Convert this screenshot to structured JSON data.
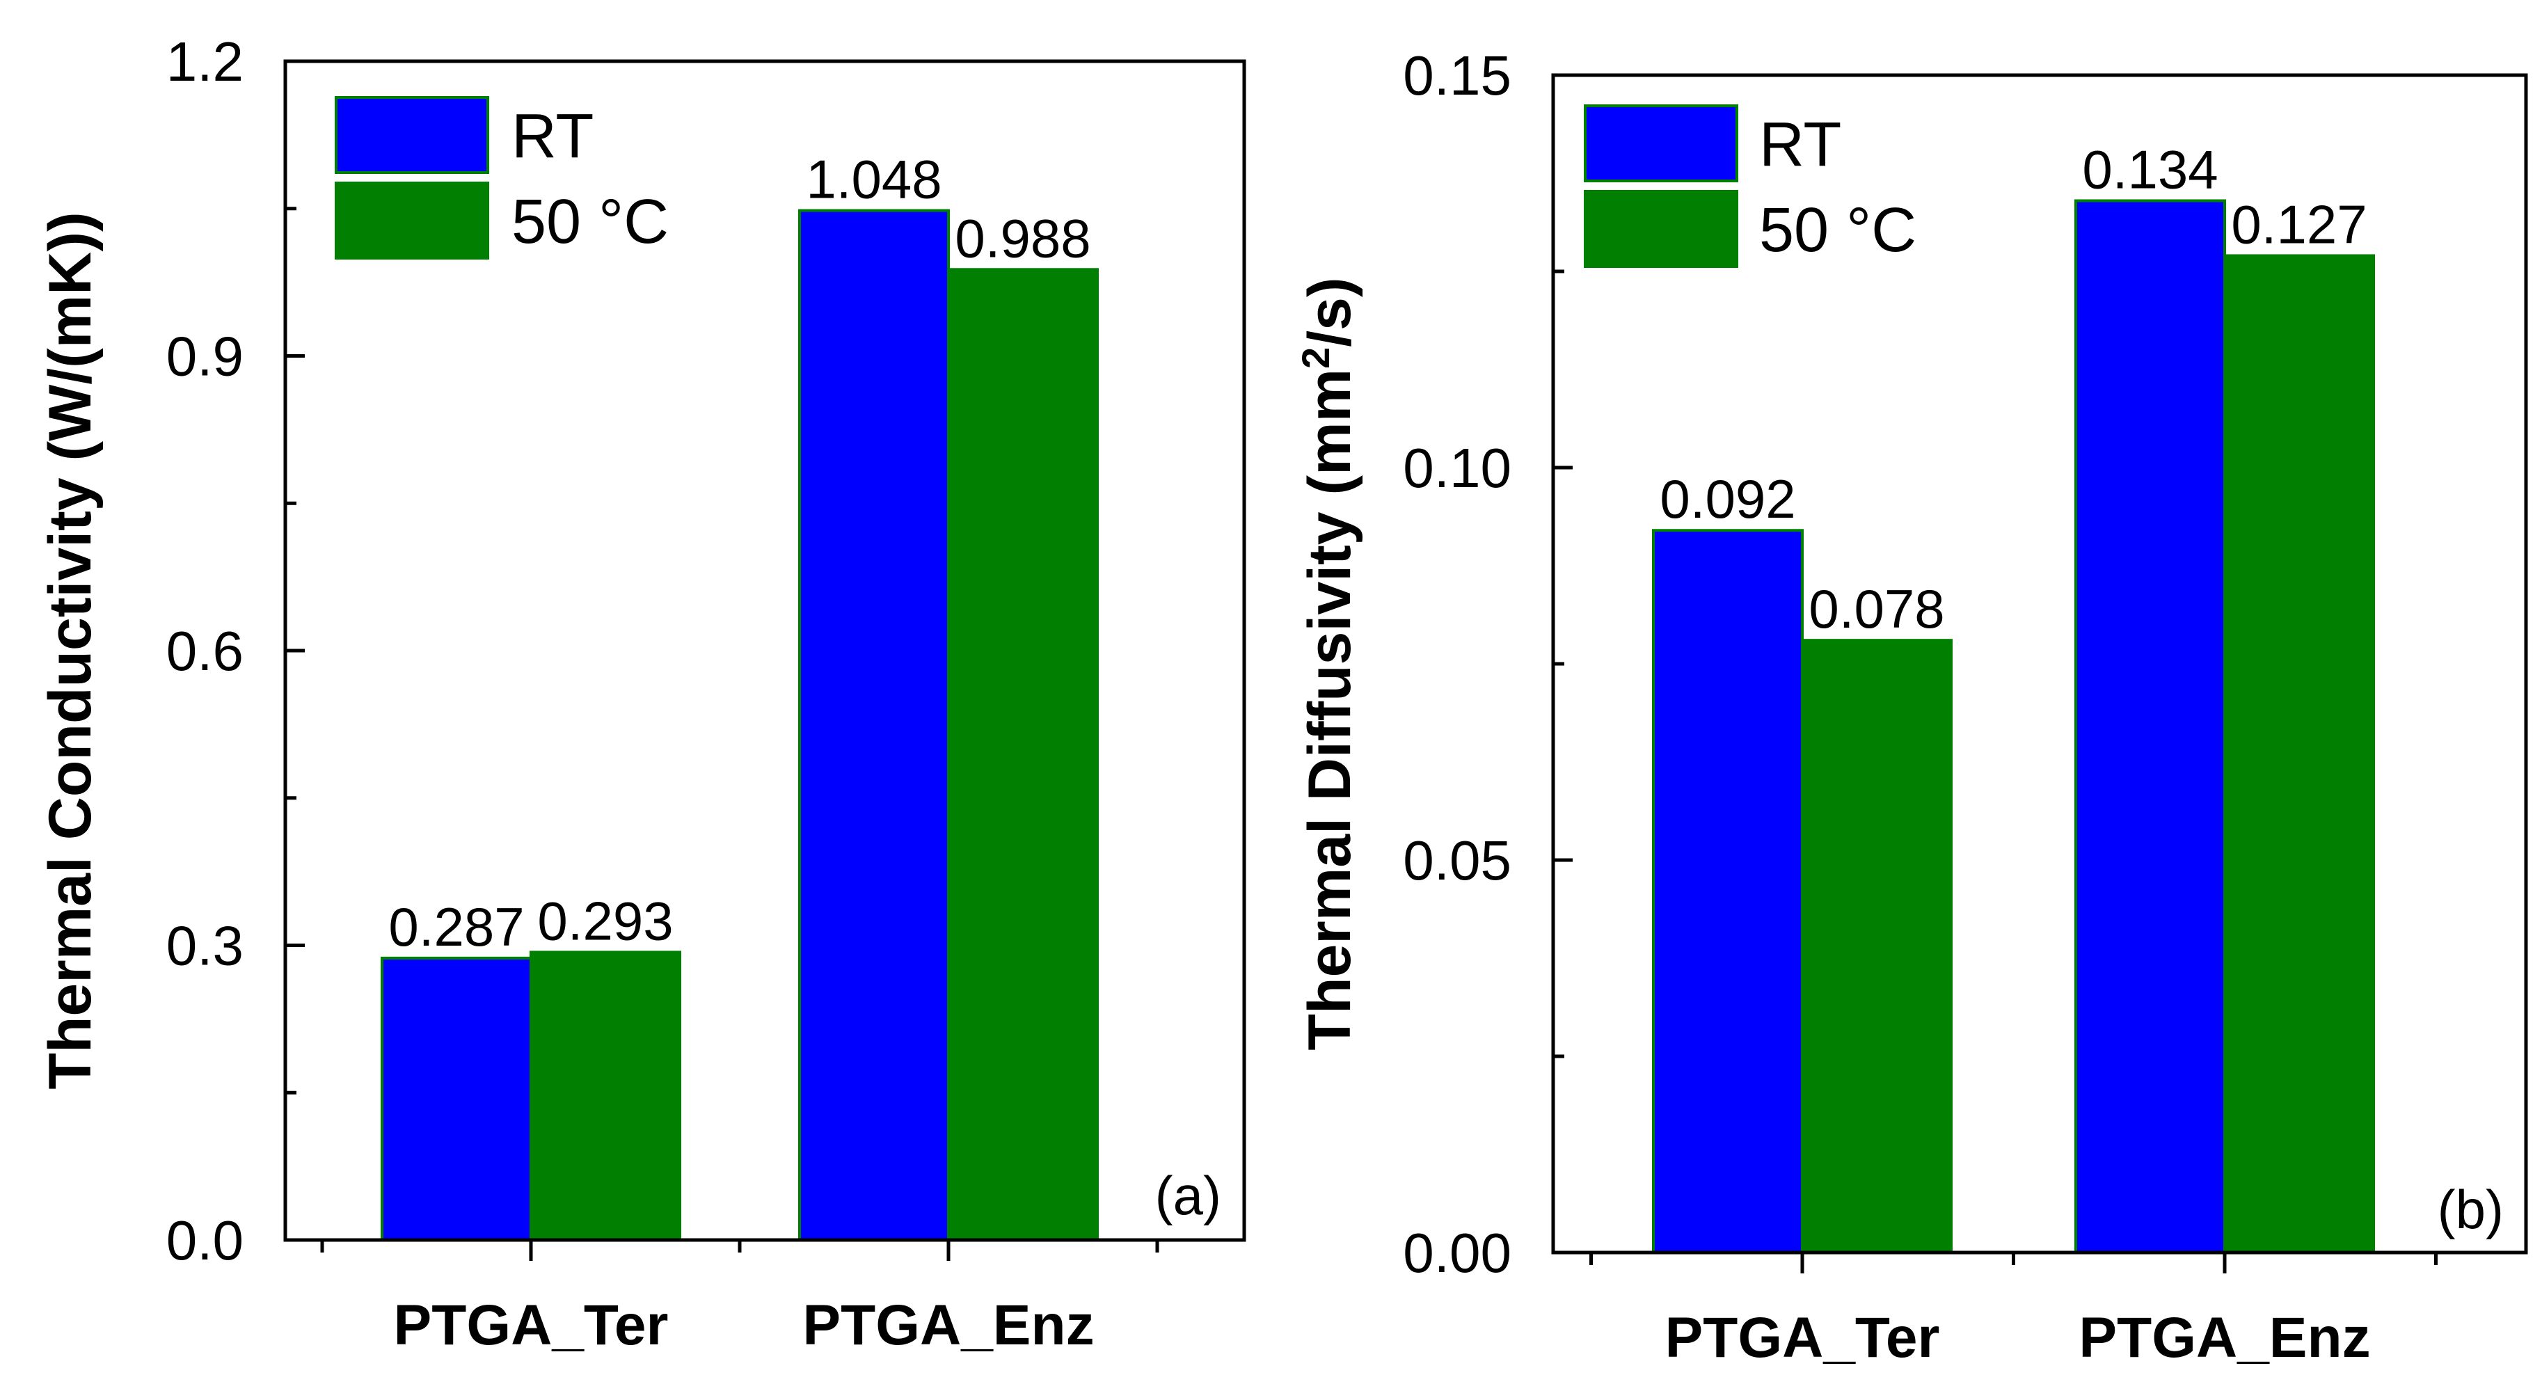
{
  "chart_data": [
    {
      "type": "bar",
      "panel_label": "(a)",
      "categories": [
        "PTGA_Ter",
        "PTGA_Enz"
      ],
      "series": [
        {
          "name": "RT",
          "values": [
            0.287,
            1.048
          ],
          "labels": [
            "0.287",
            "1.048"
          ]
        },
        {
          "name": "50 °C",
          "values": [
            0.293,
            0.988
          ],
          "labels": [
            "0.293",
            "0.988"
          ]
        }
      ],
      "ylabel": "Thermal Conductivity (W/(mK))",
      "ylabel_parts": [
        "Thermal Conductivity (W/(mK))"
      ],
      "xlabel": "",
      "ylim": [
        0,
        1.2
      ],
      "yticks": [
        0.0,
        0.3,
        0.6,
        0.9,
        1.2
      ],
      "ytick_labels": [
        "0.0",
        "0.3",
        "0.6",
        "0.9",
        "1.2"
      ],
      "legend_position": "top-left",
      "grid": false
    },
    {
      "type": "bar",
      "panel_label": "(b)",
      "categories": [
        "PTGA_Ter",
        "PTGA_Enz"
      ],
      "series": [
        {
          "name": "RT",
          "values": [
            0.092,
            0.134
          ],
          "labels": [
            "0.092",
            "0.134"
          ]
        },
        {
          "name": "50 °C",
          "values": [
            0.078,
            0.127
          ],
          "labels": [
            "0.078",
            "0.127"
          ]
        }
      ],
      "ylabel": "Thermal Diffusivity (mm²/s)",
      "ylabel_parts": [
        "Thermal Diffusivity (mm",
        "2",
        "/s)"
      ],
      "xlabel": "",
      "ylim": [
        0,
        0.15
      ],
      "yticks": [
        0.0,
        0.05,
        0.1,
        0.15
      ],
      "ytick_labels": [
        "0.00",
        "0.05",
        "0.10",
        "0.15"
      ],
      "legend_position": "top-left",
      "grid": false
    }
  ],
  "colors": {
    "series": [
      "#0000ff",
      "#007f00"
    ],
    "bar_stroke": "#008000",
    "axis": "#000000"
  }
}
